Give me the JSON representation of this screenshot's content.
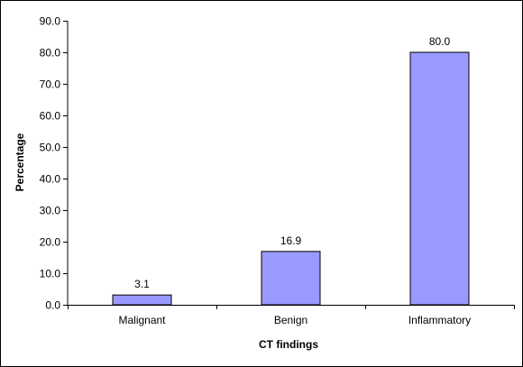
{
  "chart_data": {
    "type": "bar",
    "title": "",
    "xlabel": "CT findings",
    "ylabel": "Percentage",
    "categories": [
      "Malignant",
      "Benign",
      "Inflammatory"
    ],
    "values": [
      3.1,
      16.9,
      80.0
    ],
    "data_labels": [
      "3.1",
      "16.9",
      "80.0"
    ],
    "ylim": [
      0,
      90
    ],
    "y_ticks": [
      0,
      10,
      20,
      30,
      40,
      50,
      60,
      70,
      80,
      90
    ],
    "y_tick_labels": [
      "0.0",
      "10.0",
      "20.0",
      "30.0",
      "40.0",
      "50.0",
      "60.0",
      "70.0",
      "80.0",
      "90.0"
    ],
    "grid": false,
    "legend": "none",
    "colors": {
      "bar_fill": "#9999ff",
      "bar_stroke": "#000000",
      "axis": "#000000",
      "frame": "#000000",
      "background": "#ffffff"
    }
  }
}
